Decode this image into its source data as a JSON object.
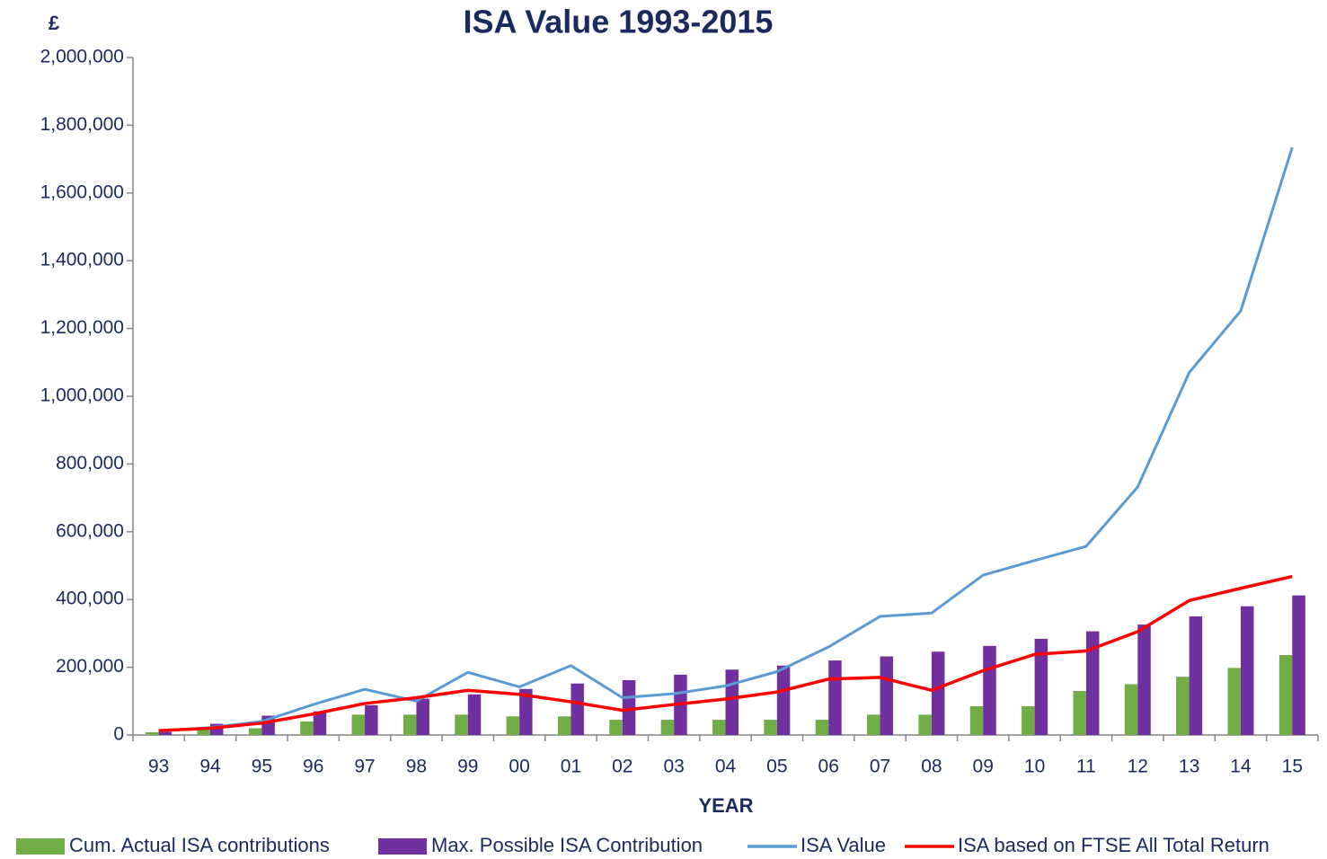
{
  "chart_data": {
    "type": "bar",
    "title": "ISA Value 1993-2015",
    "y_label": "£",
    "x_label": "YEAR",
    "categories": [
      "93",
      "94",
      "95",
      "96",
      "97",
      "98",
      "99",
      "00",
      "01",
      "02",
      "03",
      "04",
      "05",
      "06",
      "07",
      "08",
      "09",
      "10",
      "11",
      "12",
      "13",
      "14",
      "15"
    ],
    "series": [
      {
        "name": "Cum. Actual ISA contributions",
        "type": "bar",
        "color": "#70ad47",
        "values": [
          8000,
          15000,
          20000,
          40000,
          60000,
          60000,
          60000,
          55000,
          55000,
          45000,
          45000,
          45000,
          45000,
          45000,
          60000,
          60000,
          85000,
          85000,
          130000,
          150000,
          172000,
          198000,
          236000
        ]
      },
      {
        "name": "Max. Possible ISA Contribution",
        "type": "bar",
        "color": "#7030a0",
        "values": [
          9000,
          33000,
          57000,
          70000,
          88000,
          107000,
          120000,
          136000,
          152000,
          162000,
          178000,
          193000,
          205000,
          220000,
          232000,
          246000,
          263000,
          284000,
          306000,
          326000,
          350000,
          380000,
          412000
        ]
      },
      {
        "name": "ISA Value",
        "type": "line",
        "color": "#5b9bd5",
        "values": [
          12000,
          22000,
          40000,
          90000,
          135000,
          100000,
          185000,
          142000,
          205000,
          110000,
          122000,
          145000,
          187000,
          260000,
          350000,
          360000,
          472000,
          515000,
          557000,
          732000,
          1070000,
          1252000,
          1735000
        ]
      },
      {
        "name": "ISA based on FTSE All Total Return",
        "type": "line",
        "color": "#ff0000",
        "values": [
          13000,
          20000,
          35000,
          62000,
          93000,
          110000,
          132000,
          120000,
          98000,
          73000,
          90000,
          106000,
          127000,
          165000,
          170000,
          132000,
          190000,
          238000,
          248000,
          305000,
          397000,
          433000,
          468000
        ]
      }
    ],
    "ylim": [
      0,
      2000000
    ],
    "yticks": [
      0,
      {
        "value": 200000,
        "label": "200,000"
      },
      {
        "value": 400000,
        "label": "400,000"
      },
      {
        "value": 600000,
        "label": "600,000"
      },
      {
        "value": 800000,
        "label": "800,000"
      },
      {
        "value": 1000000,
        "label": "1,000,000"
      },
      {
        "value": 1200000,
        "label": "1,200,000"
      },
      {
        "value": 1400000,
        "label": "1,400,000"
      },
      {
        "value": 1600000,
        "label": "1,600,000"
      },
      {
        "value": 1800000,
        "label": "1,800,000"
      },
      {
        "value": 2000000,
        "label": "2,000,000"
      }
    ],
    "grid": false,
    "legend": "bottom"
  }
}
